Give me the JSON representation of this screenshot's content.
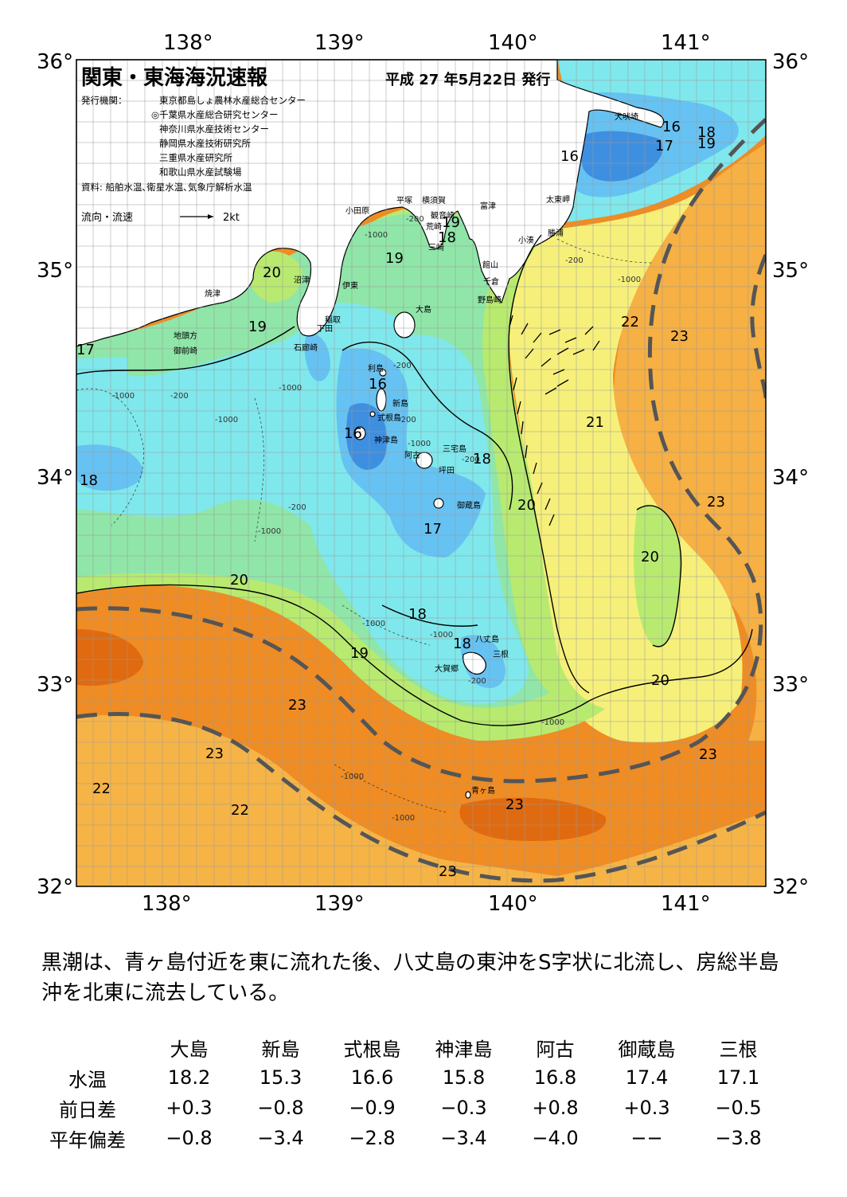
{
  "header": {
    "title": "関東・東海海況速報",
    "date": "平成 27 年5月22日 発行"
  },
  "publishers": {
    "label": "発行機関：",
    "items": [
      "東京都島しょ農林水産総合センター",
      "◎千葉県水産総合研究センター",
      "神奈川県水産技術センター",
      "静岡県水産技術研究所",
      "三重県水産研究所",
      "和歌山県水産試験場"
    ],
    "source": "資料: 船舶水温､衛星水温､気象庁解析水温"
  },
  "legend": {
    "label": "流向・流速",
    "value": "2kt"
  },
  "axes": {
    "lon_top": [
      "138°",
      "139°",
      "140°",
      "141°"
    ],
    "lon_bottom": [
      "138°",
      "139°",
      "140°",
      "141°"
    ],
    "lat_left": [
      "36°",
      "35°",
      "34°",
      "33°",
      "32°"
    ],
    "lat_right": [
      "36°",
      "35°",
      "34°",
      "33°",
      "32°"
    ]
  },
  "isotherm_labels": [
    "16",
    "18",
    "17",
    "19",
    "16",
    "19",
    "18",
    "20",
    "22",
    "23",
    "19",
    "17",
    "19",
    "16",
    "21",
    "16",
    "18",
    "18",
    "20",
    "23",
    "17",
    "20",
    "20",
    "18",
    "19",
    "18",
    "20",
    "23",
    "23",
    "22",
    "22",
    "23",
    "23",
    "23"
  ],
  "depth_labels": [
    "-200",
    "-1000",
    "-1000",
    "-200",
    "-1000",
    "-200",
    "-1000",
    "-1000",
    "-200",
    "-200",
    "-1000",
    "-200",
    "-1000",
    "-1000",
    "-1000",
    "-1000",
    "-1000",
    "-200",
    "-1000",
    "-200"
  ],
  "place_names": [
    "犬吠埼",
    "太東岬",
    "勝浦",
    "小湊",
    "館山",
    "千倉",
    "野島崎",
    "富津",
    "観音崎",
    "横須賀",
    "平塚",
    "荒崎",
    "三崎",
    "小田原",
    "沼津",
    "伊東",
    "焼津",
    "稲取",
    "下田",
    "石廊崎",
    "地頭方",
    "御前崎",
    "大島",
    "利島",
    "新島",
    "式根島",
    "神津島",
    "三宅島",
    "阿古",
    "坪田",
    "御蔵島",
    "八丈島",
    "三根",
    "大賀郷",
    "青ヶ島"
  ],
  "summary": "黒潮は、青ヶ島付近を東に流れた後、八丈島の東沖をS字状に北流し、房総半島沖を北東に流去している。",
  "table": {
    "columns": [
      "大島",
      "新島",
      "式根島",
      "神津島",
      "阿古",
      "御蔵島",
      "三根"
    ],
    "rows": [
      {
        "label": "水温",
        "values": [
          "18.2",
          "15.3",
          "16.6",
          "15.8",
          "16.8",
          "17.4",
          "17.1"
        ]
      },
      {
        "label": "前日差",
        "values": [
          "+0.3",
          "−0.8",
          "−0.9",
          "−0.3",
          "+0.8",
          "+0.3",
          "−0.5"
        ]
      },
      {
        "label": "平年偏差",
        "values": [
          "−0.8",
          "−3.4",
          "−2.8",
          "−3.4",
          "−4.0",
          "−−",
          "−3.8"
        ]
      }
    ]
  },
  "colors": {
    "t16": "#3f8fe0",
    "t17": "#66c2f2",
    "t18": "#7fe8ec",
    "t19": "#8fe6a8",
    "t20": "#b8ea70",
    "t21": "#f6f07a",
    "t22": "#f6b447",
    "t23": "#ef8c23",
    "t24": "#e06a10",
    "land": "#ffffff",
    "kuroshio_axis": "#555555"
  }
}
